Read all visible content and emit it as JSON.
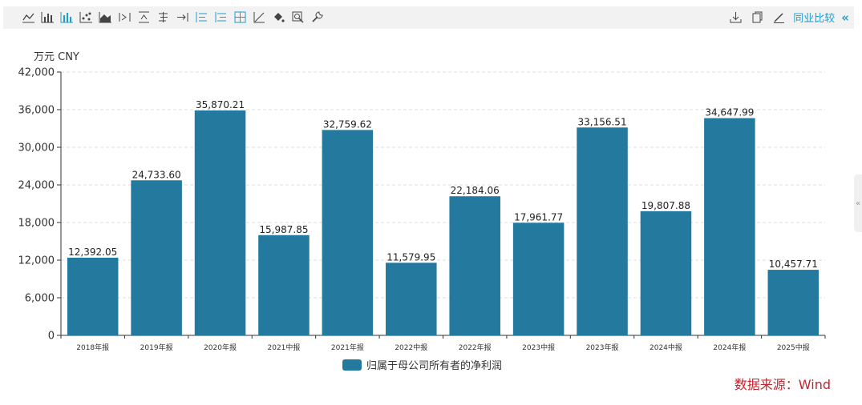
{
  "toolbar": {
    "left_icons": [
      "line-chart-icon",
      "bar-chart-icon",
      "stacked-bar-icon",
      "scatter-icon",
      "area-chart-icon",
      "align-right-icon",
      "align-top-icon",
      "center-axis-icon",
      "align-end-icon",
      "list-left-icon",
      "list-indent-icon",
      "grid-icon",
      "trend-icon",
      "fill-bucket-icon",
      "zoom-icon",
      "wrench-icon"
    ],
    "right_icons": [
      "download-icon",
      "copy-icon",
      "edit-icon"
    ],
    "peer_compare_label": "同业比较",
    "collapse_glyph": "«"
  },
  "side_handle_glyph": "«",
  "unit_label": "万元  CNY",
  "legend_label": "归属于母公司所有者的净利润",
  "source_label": "数据来源：Wind",
  "colors": {
    "bar": "#24799f",
    "accent": "#1a9fcf",
    "source": "#c0262d"
  },
  "chart_data": {
    "type": "bar",
    "categories": [
      "2018年报",
      "2019年报",
      "2020年报",
      "2021中报",
      "2021年报",
      "2022中报",
      "2022年报",
      "2023中报",
      "2023年报",
      "2024中报",
      "2024年报",
      "2025中报"
    ],
    "series": [
      {
        "name": "归属于母公司所有者的净利润",
        "values": [
          12392.05,
          24733.6,
          35870.21,
          15987.85,
          32759.62,
          11579.95,
          22184.06,
          17961.77,
          33156.51,
          19807.88,
          34647.99,
          10457.71
        ],
        "value_labels": [
          "12,392.05",
          "24,733.60",
          "35,870.21",
          "15,987.85",
          "32,759.62",
          "11,579.95",
          "22,184.06",
          "17,961.77",
          "33,156.51",
          "19,807.88",
          "34,647.99",
          "10,457.71"
        ]
      }
    ],
    "yticks": [
      0,
      6000,
      12000,
      18000,
      24000,
      30000,
      36000,
      42000
    ],
    "ytick_labels": [
      "0",
      "6,000",
      "12,000",
      "18,000",
      "24,000",
      "30,000",
      "36,000",
      "42,000"
    ],
    "ylim": [
      0,
      42000
    ],
    "grid": true,
    "legend_position": "bottom-center"
  }
}
